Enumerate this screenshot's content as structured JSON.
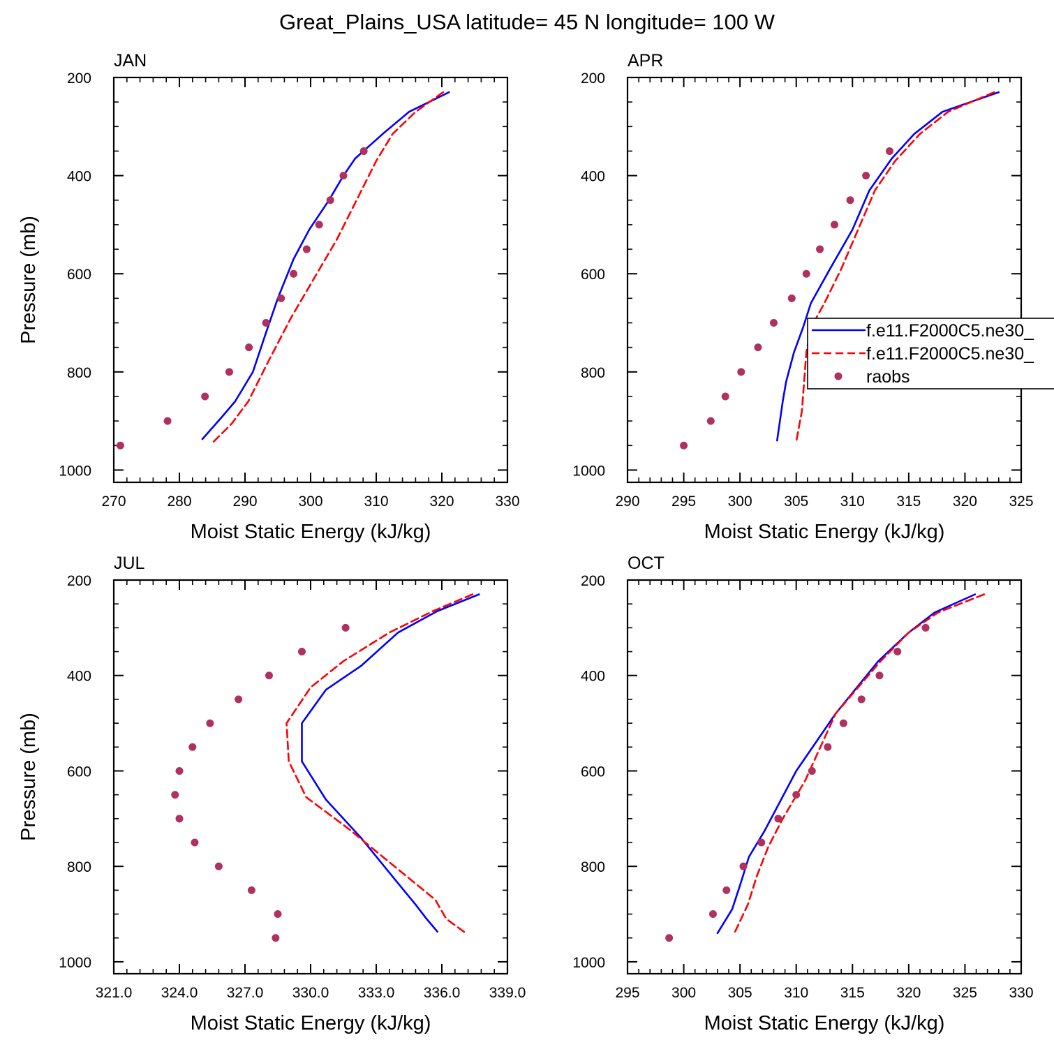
{
  "figure": {
    "title": "Great_Plains_USA  latitude= 45 N longitude= 100 W"
  },
  "legend": {
    "entries": [
      {
        "label": "f.e11.F2000C5.ne30_",
        "style": "solid",
        "color": "#0000ff"
      },
      {
        "label": "f.e11.F2000C5.ne30_",
        "style": "dashed",
        "color": "#ff0000"
      },
      {
        "label": "raobs",
        "style": "marker",
        "color": "#b03060"
      }
    ]
  },
  "chart_data": [
    {
      "type": "line",
      "title": "JAN",
      "xlabel": "Moist Static Energy (kJ/kg)",
      "ylabel": "Pressure (mb)",
      "xlim": [
        270,
        330
      ],
      "ylim": [
        1025,
        200
      ],
      "xticks": [
        270,
        280,
        290,
        300,
        310,
        320,
        330
      ],
      "xtick_labels": [
        "270",
        "280",
        "290",
        "300",
        "310",
        "320",
        "330"
      ],
      "yticks": [
        200,
        400,
        600,
        800,
        1000
      ],
      "ytick_labels": [
        "200",
        "400",
        "600",
        "800",
        "1000"
      ],
      "series": [
        {
          "name": "f.e11.F2000C5.ne30_",
          "style": "solid",
          "color": "#0000ff",
          "x": [
            321.1,
            315.0,
            311.0,
            306.8,
            305.0,
            302.8,
            299.8,
            297.4,
            295.0,
            293.2,
            291.2,
            288.5,
            286.6,
            283.5
          ],
          "y": [
            230,
            270,
            315,
            365,
            400,
            450,
            510,
            570,
            650,
            720,
            800,
            860,
            890,
            937
          ]
        },
        {
          "name": "f.e11.F2000C5.ne30_",
          "style": "dashed",
          "color": "#ff0000",
          "x": [
            320.2,
            316.0,
            312.5,
            310.0,
            307.0,
            304.0,
            300.5,
            297.0,
            293.5,
            290.5,
            288.0,
            285.0
          ],
          "y": [
            230,
            270,
            315,
            370,
            450,
            530,
            610,
            690,
            780,
            860,
            905,
            945
          ]
        },
        {
          "name": "raobs",
          "style": "marker",
          "color": "#b03060",
          "x": [
            308.1,
            305.0,
            303.0,
            301.3,
            299.4,
            297.4,
            295.5,
            293.2,
            290.6,
            287.6,
            283.9,
            278.2,
            271.0
          ],
          "y": [
            350,
            400,
            450,
            500,
            550,
            600,
            650,
            700,
            750,
            800,
            850,
            900,
            950
          ]
        }
      ]
    },
    {
      "type": "line",
      "title": "APR",
      "xlabel": "Moist Static Energy (kJ/kg)",
      "ylabel": "",
      "xlim": [
        290,
        325
      ],
      "ylim": [
        1025,
        200
      ],
      "xticks": [
        290,
        295,
        300,
        305,
        310,
        315,
        320,
        325
      ],
      "xtick_labels": [
        "290",
        "295",
        "300",
        "305",
        "310",
        "315",
        "320",
        "325"
      ],
      "yticks": [
        200,
        400,
        600,
        800,
        1000
      ],
      "ytick_labels": [
        "200",
        "400",
        "600",
        "800",
        "1000"
      ],
      "series": [
        {
          "name": "f.e11.F2000C5.ne30_",
          "style": "solid",
          "color": "#0000ff",
          "x": [
            323.0,
            318.0,
            315.5,
            313.5,
            311.5,
            310.0,
            308.0,
            306.3,
            305.6,
            304.8,
            304.1,
            303.8,
            303.3
          ],
          "y": [
            230,
            270,
            315,
            365,
            430,
            510,
            590,
            660,
            710,
            760,
            820,
            860,
            940
          ]
        },
        {
          "name": "f.e11.F2000C5.ne30_",
          "style": "dashed",
          "color": "#ff0000",
          "x": [
            322.6,
            318.5,
            316.0,
            313.8,
            312.0,
            310.5,
            309.0,
            307.5,
            306.3,
            305.9,
            305.7,
            305.5,
            305.0
          ],
          "y": [
            230,
            270,
            315,
            370,
            430,
            510,
            590,
            660,
            710,
            760,
            820,
            880,
            942
          ]
        },
        {
          "name": "raobs",
          "style": "marker",
          "color": "#b03060",
          "x": [
            313.3,
            311.2,
            309.8,
            308.4,
            307.1,
            305.9,
            304.6,
            303.0,
            301.6,
            300.1,
            298.7,
            297.4,
            295.0
          ],
          "y": [
            350,
            400,
            450,
            500,
            550,
            600,
            650,
            700,
            750,
            800,
            850,
            900,
            950
          ]
        }
      ]
    },
    {
      "type": "line",
      "title": "JUL",
      "xlabel": "Moist Static Energy (kJ/kg)",
      "ylabel": "Pressure (mb)",
      "xlim": [
        321.0,
        339.0
      ],
      "ylim": [
        1025,
        200
      ],
      "xticks": [
        321.0,
        324.0,
        327.0,
        330.0,
        333.0,
        336.0,
        339.0
      ],
      "xtick_labels": [
        "321.0",
        "324.0",
        "327.0",
        "330.0",
        "333.0",
        "336.0",
        "339.0"
      ],
      "yticks": [
        200,
        400,
        600,
        800,
        1000
      ],
      "ytick_labels": [
        "200",
        "400",
        "600",
        "800",
        "1000"
      ],
      "series": [
        {
          "name": "f.e11.F2000C5.ne30_",
          "style": "solid",
          "color": "#0000ff",
          "x": [
            337.7,
            335.8,
            334.0,
            332.3,
            330.7,
            329.6,
            329.6,
            330.7,
            332.3,
            333.9,
            334.8,
            335.3,
            335.8
          ],
          "y": [
            230,
            265,
            310,
            380,
            430,
            500,
            580,
            660,
            740,
            830,
            880,
            910,
            937
          ]
        },
        {
          "name": "f.e11.F2000C5.ne30_",
          "style": "dashed",
          "color": "#ff0000",
          "x": [
            337.4,
            335.6,
            333.6,
            331.5,
            330.0,
            328.9,
            329.0,
            329.8,
            331.7,
            333.3,
            335.7,
            336.2,
            337.1
          ],
          "y": [
            230,
            265,
            310,
            370,
            425,
            500,
            580,
            655,
            720,
            780,
            870,
            910,
            940
          ]
        },
        {
          "name": "raobs",
          "style": "marker",
          "color": "#b03060",
          "x": [
            331.6,
            329.6,
            328.1,
            326.7,
            325.4,
            324.6,
            324.0,
            323.8,
            324.0,
            324.7,
            325.8,
            327.3,
            328.5,
            328.4
          ],
          "y": [
            300,
            350,
            400,
            450,
            500,
            550,
            600,
            650,
            700,
            750,
            800,
            850,
            900,
            950
          ]
        }
      ]
    },
    {
      "type": "line",
      "title": "OCT",
      "xlabel": "Moist Static Energy (kJ/kg)",
      "ylabel": "",
      "xlim": [
        295,
        330
      ],
      "ylim": [
        1025,
        200
      ],
      "xticks": [
        295,
        300,
        305,
        310,
        315,
        320,
        325,
        330
      ],
      "xtick_labels": [
        "295",
        "300",
        "305",
        "310",
        "315",
        "320",
        "325",
        "330"
      ],
      "yticks": [
        200,
        400,
        600,
        800,
        1000
      ],
      "ytick_labels": [
        "200",
        "400",
        "600",
        "800",
        "1000"
      ],
      "series": [
        {
          "name": "f.e11.F2000C5.ne30_",
          "style": "solid",
          "color": "#0000ff",
          "x": [
            325.9,
            322.3,
            320.0,
            317.3,
            313.5,
            310.0,
            307.2,
            305.8,
            305.0,
            304.3,
            303.0
          ],
          "y": [
            230,
            268,
            310,
            370,
            480,
            600,
            725,
            780,
            840,
            890,
            940
          ]
        },
        {
          "name": "f.e11.F2000C5.ne30_",
          "style": "dashed",
          "color": "#ff0000",
          "x": [
            326.7,
            322.6,
            320.0,
            317.5,
            313.5,
            310.8,
            308.8,
            307.5,
            306.5,
            305.7,
            304.5
          ],
          "y": [
            230,
            268,
            310,
            370,
            480,
            620,
            700,
            760,
            820,
            880,
            940
          ]
        },
        {
          "name": "raobs",
          "style": "marker",
          "color": "#b03060",
          "x": [
            321.5,
            319.0,
            317.4,
            315.8,
            314.2,
            312.8,
            311.4,
            310.0,
            308.4,
            306.9,
            305.3,
            303.8,
            302.6,
            298.7
          ],
          "y": [
            300,
            350,
            400,
            450,
            500,
            550,
            600,
            650,
            700,
            750,
            800,
            850,
            900,
            950
          ]
        }
      ]
    }
  ]
}
